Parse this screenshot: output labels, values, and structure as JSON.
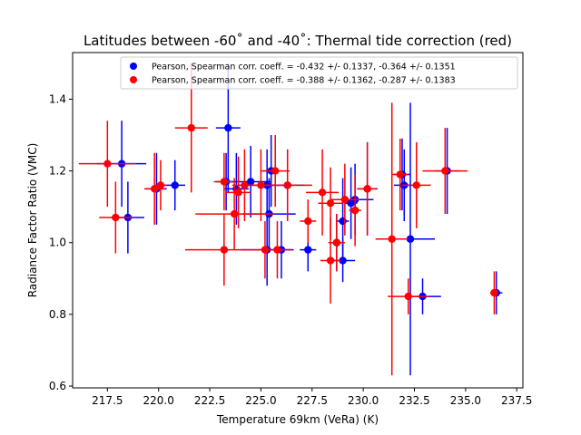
{
  "chart_data": {
    "type": "scatter",
    "title": "Latitudes between -60˚ and -40˚: Thermal tide correction (red)",
    "xlabel": "Temperature 69km (VeRa) (K)",
    "ylabel": "Radiance Factor Ratio (VMC)",
    "xlim": [
      215.8,
      237.8
    ],
    "ylim": [
      0.595,
      1.53
    ],
    "xticks": [
      217.5,
      220.0,
      222.5,
      225.0,
      227.5,
      230.0,
      232.5,
      235.0,
      237.5
    ],
    "xtick_labels": [
      "217.5",
      "220.0",
      "222.5",
      "225.0",
      "227.5",
      "230.0",
      "232.5",
      "235.0",
      "237.5"
    ],
    "yticks": [
      0.6,
      0.8,
      1.0,
      1.2,
      1.4
    ],
    "ytick_labels": [
      "0.6",
      "0.8",
      "1.0",
      "1.2",
      "1.4"
    ],
    "grid": false,
    "legend_position": "top-right",
    "series": [
      {
        "name": "Pearson, Spearman corr. coeff. = -0.432 +/-  0.1337, -0.364 +/-  0.1351",
        "color": "#0000ff",
        "points": [
          {
            "x": 218.2,
            "y": 1.22,
            "xerr": 1.2,
            "yerr": 0.12
          },
          {
            "x": 218.5,
            "y": 1.07,
            "xerr": 0.8,
            "yerr": 0.1
          },
          {
            "x": 219.9,
            "y": 1.15,
            "xerr": 0.5,
            "yerr": 0.1
          },
          {
            "x": 220.8,
            "y": 1.16,
            "xerr": 0.5,
            "yerr": 0.07
          },
          {
            "x": 223.4,
            "y": 1.32,
            "xerr": 0.6,
            "yerr": 0.18
          },
          {
            "x": 223.3,
            "y": 1.17,
            "xerr": 0.5,
            "yerr": 0.08
          },
          {
            "x": 223.8,
            "y": 1.15,
            "xerr": 0.6,
            "yerr": 0.1
          },
          {
            "x": 224.5,
            "y": 1.17,
            "xerr": 1.0,
            "yerr": 0.1
          },
          {
            "x": 225.3,
            "y": 1.16,
            "xerr": 1.0,
            "yerr": 0.1
          },
          {
            "x": 225.4,
            "y": 1.08,
            "xerr": 1.3,
            "yerr": 0.1
          },
          {
            "x": 225.3,
            "y": 0.98,
            "xerr": 1.3,
            "yerr": 0.1
          },
          {
            "x": 225.5,
            "y": 1.2,
            "xerr": 0.4,
            "yerr": 0.1
          },
          {
            "x": 226.0,
            "y": 0.98,
            "xerr": 0.5,
            "yerr": 0.08
          },
          {
            "x": 226.3,
            "y": 1.16,
            "xerr": 0.8,
            "yerr": 0.1
          },
          {
            "x": 227.3,
            "y": 0.98,
            "xerr": 0.4,
            "yerr": 0.06
          },
          {
            "x": 228.7,
            "y": 1.0,
            "xerr": 0.4,
            "yerr": 0.08
          },
          {
            "x": 229.0,
            "y": 1.06,
            "xerr": 0.3,
            "yerr": 0.12
          },
          {
            "x": 229.0,
            "y": 0.95,
            "xerr": 0.6,
            "yerr": 0.06
          },
          {
            "x": 229.4,
            "y": 1.11,
            "xerr": 0.3,
            "yerr": 0.1
          },
          {
            "x": 229.6,
            "y": 1.12,
            "xerr": 0.9,
            "yerr": 0.1
          },
          {
            "x": 230.2,
            "y": 1.15,
            "xerr": 0.5,
            "yerr": 0.13
          },
          {
            "x": 231.9,
            "y": 1.19,
            "xerr": 0.4,
            "yerr": 0.1
          },
          {
            "x": 232.0,
            "y": 1.16,
            "xerr": 0.5,
            "yerr": 0.1
          },
          {
            "x": 232.3,
            "y": 1.01,
            "xerr": 1.2,
            "yerr": 0.38
          },
          {
            "x": 232.9,
            "y": 0.85,
            "xerr": 0.9,
            "yerr": 0.05
          },
          {
            "x": 234.1,
            "y": 1.2,
            "xerr": 0.6,
            "yerr": 0.12
          },
          {
            "x": 236.5,
            "y": 0.86,
            "xerr": 0.3,
            "yerr": 0.06
          }
        ]
      },
      {
        "name": "Pearson, Spearman corr. coeff. = -0.388 +/-  0.1362, -0.287 +/-  0.1383",
        "color": "#ff0000",
        "points": [
          {
            "x": 217.5,
            "y": 1.22,
            "xerr": 1.4,
            "yerr": 0.12
          },
          {
            "x": 217.9,
            "y": 1.07,
            "xerr": 0.8,
            "yerr": 0.1
          },
          {
            "x": 219.8,
            "y": 1.15,
            "xerr": 0.5,
            "yerr": 0.1
          },
          {
            "x": 220.1,
            "y": 1.16,
            "xerr": 0.3,
            "yerr": 0.07
          },
          {
            "x": 221.6,
            "y": 1.32,
            "xerr": 0.8,
            "yerr": 0.18
          },
          {
            "x": 223.2,
            "y": 1.17,
            "xerr": 0.5,
            "yerr": 0.08
          },
          {
            "x": 223.2,
            "y": 0.98,
            "xerr": 1.9,
            "yerr": 0.1
          },
          {
            "x": 223.7,
            "y": 1.08,
            "xerr": 1.9,
            "yerr": 0.1
          },
          {
            "x": 223.9,
            "y": 1.14,
            "xerr": 0.6,
            "yerr": 0.1
          },
          {
            "x": 224.2,
            "y": 1.16,
            "xerr": 0.6,
            "yerr": 0.1
          },
          {
            "x": 225.0,
            "y": 1.16,
            "xerr": 0.6,
            "yerr": 0.1
          },
          {
            "x": 225.2,
            "y": 0.98,
            "xerr": 0.3,
            "yerr": 0.08
          },
          {
            "x": 225.7,
            "y": 1.2,
            "xerr": 0.7,
            "yerr": 0.1
          },
          {
            "x": 225.8,
            "y": 0.98,
            "xerr": 0.7,
            "yerr": 0.08
          },
          {
            "x": 226.3,
            "y": 1.16,
            "xerr": 1.2,
            "yerr": 0.1
          },
          {
            "x": 227.3,
            "y": 1.06,
            "xerr": 0.4,
            "yerr": 0.06
          },
          {
            "x": 228.0,
            "y": 1.14,
            "xerr": 0.8,
            "yerr": 0.12
          },
          {
            "x": 228.4,
            "y": 1.11,
            "xerr": 0.6,
            "yerr": 0.1
          },
          {
            "x": 228.4,
            "y": 0.95,
            "xerr": 0.5,
            "yerr": 0.12
          },
          {
            "x": 228.7,
            "y": 1.0,
            "xerr": 0.4,
            "yerr": 0.08
          },
          {
            "x": 229.1,
            "y": 1.12,
            "xerr": 0.7,
            "yerr": 0.1
          },
          {
            "x": 229.6,
            "y": 1.09,
            "xerr": 0.3,
            "yerr": 0.1
          },
          {
            "x": 230.2,
            "y": 1.15,
            "xerr": 0.5,
            "yerr": 0.13
          },
          {
            "x": 231.4,
            "y": 1.01,
            "xerr": 0.8,
            "yerr": 0.38
          },
          {
            "x": 231.8,
            "y": 1.19,
            "xerr": 0.4,
            "yerr": 0.1
          },
          {
            "x": 232.2,
            "y": 0.85,
            "xerr": 1.0,
            "yerr": 0.05
          },
          {
            "x": 232.6,
            "y": 1.16,
            "xerr": 0.7,
            "yerr": 0.12
          },
          {
            "x": 234.0,
            "y": 1.2,
            "xerr": 1.1,
            "yerr": 0.12
          },
          {
            "x": 236.4,
            "y": 0.86,
            "xerr": 0.2,
            "yerr": 0.06
          }
        ]
      }
    ]
  }
}
